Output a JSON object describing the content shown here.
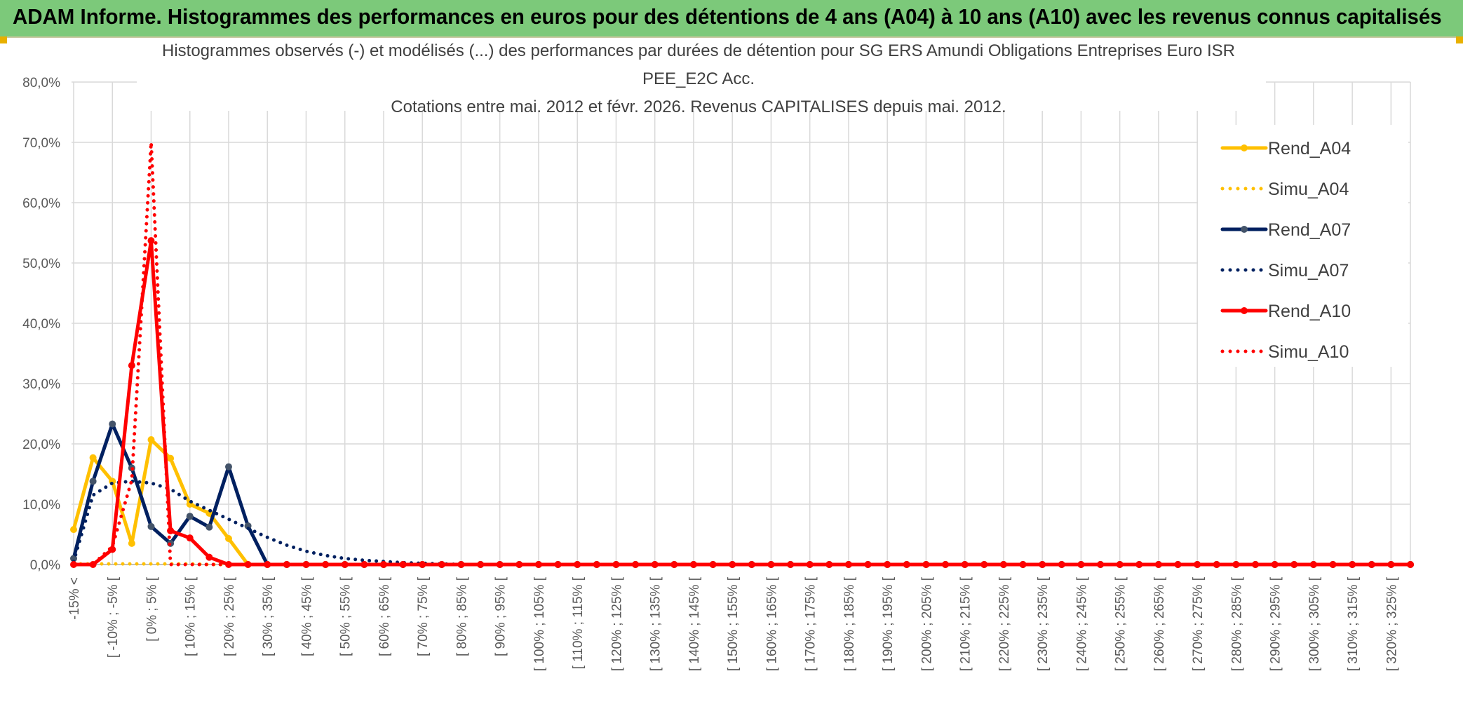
{
  "banner": {
    "title": "ADAM Informe. Histogrammes des performances en euros pour des détentions de 4 ans (A04) à 10 ans (A10) avec les revenus connus capitalisés"
  },
  "chart_data": {
    "type": "line",
    "title_lines": [
      "Histogrammes observés (-) et modélisés (...) des performances par durées de détention pour SG ERS Amundi Obligations Entreprises Euro ISR",
      "PEE_E2C Acc.",
      "Cotations entre mai. 2012 et févr. 2026. Revenus CAPITALISES depuis mai. 2012."
    ],
    "ylim": [
      0,
      0.8
    ],
    "y_ticks": [
      "0,0%",
      "10,0%",
      "20,0%",
      "30,0%",
      "40,0%",
      "50,0%",
      "60,0%",
      "70,0%",
      "80,0%"
    ],
    "x_labels": [
      "-15% <",
      "[ -10% ; -5% [",
      "[ 0% ; 5% [",
      "[ 10% ; 15% [",
      "[ 20% ; 25% [",
      "[ 30% ; 35% [",
      "[ 40% ; 45% [",
      "[ 50% ; 55% [",
      "[ 60% ; 65% [",
      "[ 70% ; 75% [",
      "[ 80% ; 85% [",
      "[ 90% ; 95% [",
      "[ 100% ; 105% [",
      "[ 110% ; 115% [",
      "[ 120% ; 125% [",
      "[ 130% ; 135% [",
      "[ 140% ; 145% [",
      "[ 150% ; 155% [",
      "[ 160% ; 165% [",
      "[ 170% ; 175% [",
      "[ 180% ; 185% [",
      "[ 190% ; 195% [",
      "[ 200% ; 205% [",
      "[ 210% ; 215% [",
      "[ 220% ; 225% [",
      "[ 230% ; 235% [",
      "[ 240% ; 245% [",
      "[ 250% ; 255% [",
      "[ 260% ; 265% [",
      "[ 270% ; 275% [",
      "[ 280% ; 285% [",
      "[ 290% ; 295% [",
      "[ 300% ; 305% [",
      "[ 310% ; 315% [",
      "[ 320% ; 325% ["
    ],
    "bins_after_last_label": 1,
    "gridlines": true,
    "legend_placement": "top-right",
    "series": [
      {
        "name": "Rend_A04",
        "style": "solid",
        "color": "#ffc000",
        "values": [
          0.058,
          0.177,
          0.138,
          0.035,
          0.207,
          0.176,
          0.1,
          0.085,
          0.043,
          0.0
        ]
      },
      {
        "name": "Simu_A04",
        "style": "dotted",
        "color": "#ffc000",
        "values": [
          0.001,
          0.001,
          0.001,
          0.001,
          0.001,
          0.001,
          0.001,
          0.0,
          0.0
        ]
      },
      {
        "name": "Rend_A07",
        "style": "solid",
        "color": "#002060",
        "values": [
          0.01,
          0.138,
          0.233,
          0.16,
          0.063,
          0.035,
          0.08,
          0.062,
          0.162,
          0.064,
          0.0
        ]
      },
      {
        "name": "Simu_A07",
        "style": "dotted",
        "color": "#002060",
        "values": [
          0.005,
          0.115,
          0.135,
          0.138,
          0.135,
          0.125,
          0.105,
          0.09,
          0.075,
          0.06,
          0.045,
          0.032,
          0.022,
          0.015,
          0.01,
          0.007,
          0.005,
          0.003,
          0.002,
          0.001,
          0.0
        ]
      },
      {
        "name": "Rend_A10",
        "style": "solid",
        "color": "#ff0000",
        "values": [
          0.0,
          0.0,
          0.025,
          0.33,
          0.537,
          0.056,
          0.044,
          0.012,
          0.0
        ]
      },
      {
        "name": "Simu_A10",
        "style": "dotted",
        "color": "#ff0000",
        "values": [
          0.0,
          0.0,
          0.03,
          0.14,
          0.7,
          0.0,
          0.0,
          0.0
        ]
      }
    ]
  }
}
